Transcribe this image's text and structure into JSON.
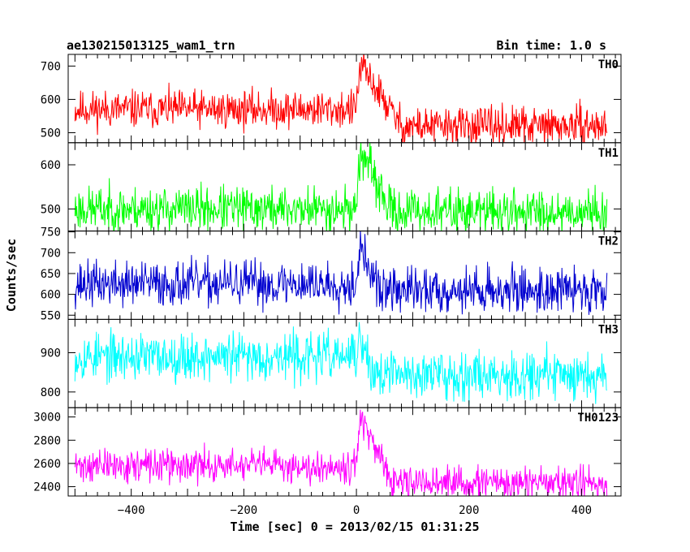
{
  "header": {
    "title": "ae130215013125_wam1_trn",
    "bin_time": "Bin time: 1.0 s"
  },
  "axes": {
    "xlabel": "Time [sec] 0 = 2013/02/15 01:31:25",
    "ylabel": "Counts/sec"
  },
  "chart_data": {
    "type": "line",
    "title": "ae130215013125_wam1_trn",
    "xlabel": "Time [sec] 0 = 2013/02/15 01:31:25",
    "ylabel": "Counts/sec",
    "xlim": [
      -512,
      470
    ],
    "x_ticks": [
      -400,
      -200,
      0,
      200,
      400
    ],
    "bin_time_s": 1.0,
    "t_start": -500,
    "t_end": 445,
    "grid": false,
    "panels": [
      {
        "name": "TH0",
        "color": "#ff0000",
        "ylim": [
          470,
          735
        ],
        "y_ticks": [
          500,
          600,
          700
        ],
        "level_before": 570,
        "level_after": 520,
        "noise": 28,
        "seed": 11,
        "burst": {
          "start": -2,
          "peak_time": 8,
          "peak": 700,
          "decay_end": 80
        }
      },
      {
        "name": "TH1",
        "color": "#00ff00",
        "ylim": [
          450,
          650
        ],
        "y_ticks": [
          500,
          600
        ],
        "level_before": 500,
        "level_after": 495,
        "noise": 25,
        "seed": 23,
        "burst": {
          "start": -2,
          "peak_time": 8,
          "peak": 630,
          "decay_end": 60
        }
      },
      {
        "name": "TH2",
        "color": "#0000d0",
        "ylim": [
          540,
          752
        ],
        "y_ticks": [
          550,
          600,
          650,
          700,
          750
        ],
        "level_before": 625,
        "level_after": 610,
        "noise": 27,
        "seed": 37,
        "burst": {
          "start": -2,
          "peak_time": 6,
          "peak": 710,
          "decay_end": 40
        }
      },
      {
        "name": "TH3",
        "color": "#00ffff",
        "ylim": [
          760,
          985
        ],
        "y_ticks": [
          800,
          900
        ],
        "level_before": 890,
        "level_after": 845,
        "noise": 30,
        "seed": 53,
        "burst": {
          "start": -2,
          "peak_time": 6,
          "peak": 930,
          "decay_end": 30
        }
      },
      {
        "name": "TH0123",
        "color": "#ff00ff",
        "ylim": [
          2320,
          3080
        ],
        "y_ticks": [
          2400,
          2600,
          2800,
          3000
        ],
        "level_before": 2580,
        "level_after": 2430,
        "noise": 70,
        "seed": 71,
        "burst": {
          "start": -2,
          "peak_time": 8,
          "peak": 3000,
          "decay_end": 60
        }
      }
    ]
  }
}
